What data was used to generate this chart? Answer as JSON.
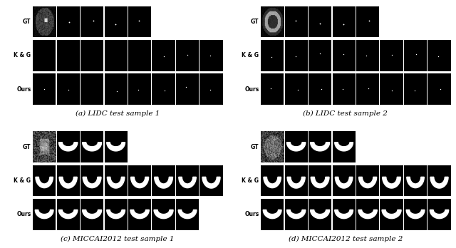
{
  "background_color": "#ffffff",
  "label_fontsize": 5.5,
  "caption_fontsize": 7.5,
  "subfigures": [
    {
      "caption": "(a) LIDC test sample 1",
      "col": 0,
      "row": 0,
      "mri_style": "lidc1",
      "gt_n_extra": 4,
      "kg_n": 8,
      "ours_n": 8,
      "kg_dot_pattern": [
        0,
        0,
        0,
        0,
        0,
        1,
        1,
        1
      ],
      "ours_dot_pattern": [
        1,
        1,
        0,
        1,
        1,
        1,
        1,
        1
      ],
      "is_miccai": false
    },
    {
      "caption": "(b) LIDC test sample 2",
      "col": 1,
      "row": 0,
      "mri_style": "lidc2",
      "gt_n_extra": 4,
      "kg_n": 8,
      "ours_n": 8,
      "kg_dot_pattern": [
        1,
        1,
        1,
        1,
        1,
        1,
        1,
        1
      ],
      "ours_dot_pattern": [
        1,
        1,
        1,
        1,
        1,
        1,
        1,
        1
      ],
      "is_miccai": false
    },
    {
      "caption": "(c) MICCAI2012 test sample 1",
      "col": 0,
      "row": 1,
      "mri_style": "miccai1",
      "gt_n_extra": 3,
      "kg_n": 8,
      "ours_n": 7,
      "is_miccai": true
    },
    {
      "caption": "(d) MICCAI2012 test sample 2",
      "col": 1,
      "row": 1,
      "mri_style": "miccai2",
      "gt_n_extra": 3,
      "kg_n": 8,
      "ours_n": 8,
      "is_miccai": true
    }
  ]
}
